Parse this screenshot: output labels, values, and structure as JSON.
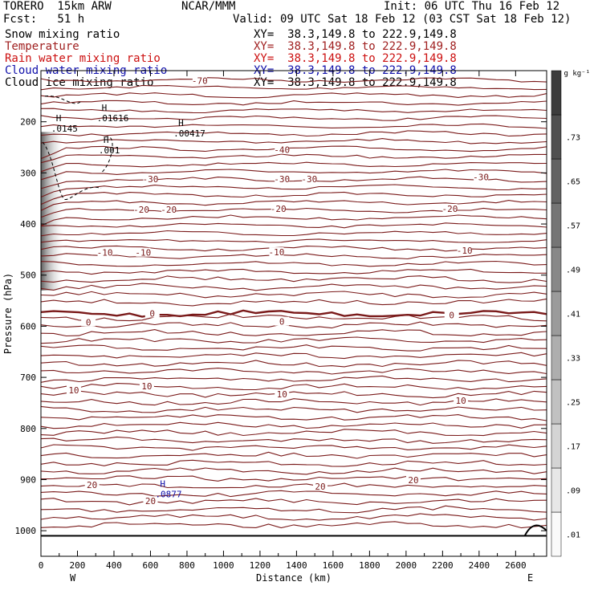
{
  "header": {
    "model": "TORERO  15km ARW",
    "center": "NCAR/MMM",
    "init": "Init: 06 UTC Thu 16 Feb 12",
    "fcst": "Fcst:   51 h",
    "valid": "Valid: 09 UTC Sat 18 Feb 12 (03 CST Sat 18 Feb 12)"
  },
  "fields": [
    {
      "label": "Snow mixing ratio",
      "color": "#000000",
      "xy": "XY=  38.3,149.8 to 222.9,149.8"
    },
    {
      "label": "Temperature",
      "color": "#a02020",
      "xy": "XY=  38.3,149.8 to 222.9,149.8"
    },
    {
      "label": "Rain water mixing ratio",
      "color": "#cc1010",
      "xy": "XY=  38.3,149.8 to 222.9,149.8"
    },
    {
      "label": "Cloud water mixing ratio",
      "color": "#1010aa",
      "xy": "XY=  38.3,149.8 to 222.9,149.8"
    },
    {
      "label": "Cloud ice mixing ratio",
      "color": "#000000",
      "xy": "XY=  38.3,149.8 to 222.9,149.8"
    }
  ],
  "chart_data": {
    "type": "cross-section contour",
    "xlabel": "Distance (km)",
    "ylabel": "Pressure (hPa)",
    "xlim": [
      0,
      2770
    ],
    "ylim": [
      1050,
      100
    ],
    "x_ticks": [
      0,
      200,
      400,
      600,
      800,
      1000,
      1200,
      1400,
      1600,
      1800,
      2000,
      2200,
      2400,
      2600
    ],
    "y_ticks": [
      200,
      300,
      400,
      500,
      600,
      700,
      800,
      900,
      1000
    ],
    "west_label": "W",
    "east_label": "E",
    "colorbar": {
      "unit": "g kg⁻¹",
      "labels": [
        ".01",
        ".09",
        ".17",
        ".25",
        ".33",
        ".41",
        ".49",
        ".57",
        ".65",
        ".73"
      ]
    },
    "temperature_contours": [
      {
        "value": -70,
        "p": 125
      },
      {
        "value": -40,
        "p": 260
      },
      {
        "value": -30,
        "p": 310
      },
      {
        "value": -20,
        "p": 370
      },
      {
        "value": -10,
        "p": 455
      },
      {
        "value": 0,
        "p": 575
      },
      {
        "value": 10,
        "p": 720
      },
      {
        "value": 20,
        "p": 905
      }
    ],
    "temperature_labels": [
      {
        "text": "-70",
        "x": 870,
        "p": 120
      },
      {
        "text": "-40",
        "x": 1320,
        "p": 255
      },
      {
        "text": "-30",
        "x": 600,
        "p": 312
      },
      {
        "text": "-30",
        "x": 1320,
        "p": 312
      },
      {
        "text": "-30",
        "x": 1470,
        "p": 312
      },
      {
        "text": "-30",
        "x": 2410,
        "p": 308
      },
      {
        "text": "-20",
        "x": 550,
        "p": 372
      },
      {
        "text": "-20",
        "x": 700,
        "p": 372
      },
      {
        "text": "-20",
        "x": 1300,
        "p": 370
      },
      {
        "text": "-20",
        "x": 2240,
        "p": 370
      },
      {
        "text": "-10",
        "x": 350,
        "p": 456
      },
      {
        "text": "-10",
        "x": 560,
        "p": 456
      },
      {
        "text": "-10",
        "x": 1290,
        "p": 455
      },
      {
        "text": "-10",
        "x": 2320,
        "p": 452
      },
      {
        "text": "0",
        "x": 260,
        "p": 592
      },
      {
        "text": "0",
        "x": 610,
        "p": 575
      },
      {
        "text": "0",
        "x": 1320,
        "p": 591
      },
      {
        "text": "0",
        "x": 2250,
        "p": 578
      },
      {
        "text": "10",
        "x": 180,
        "p": 725
      },
      {
        "text": "10",
        "x": 580,
        "p": 717
      },
      {
        "text": "10",
        "x": 1320,
        "p": 733
      },
      {
        "text": "10",
        "x": 2300,
        "p": 745
      },
      {
        "text": "20",
        "x": 280,
        "p": 910
      },
      {
        "text": "20",
        "x": 600,
        "p": 942
      },
      {
        "text": "20",
        "x": 1530,
        "p": 913
      },
      {
        "text": "20",
        "x": 2040,
        "p": 901
      }
    ],
    "maxima": [
      {
        "text": ".01616",
        "x": 350,
        "p": 194,
        "color": "#000000"
      },
      {
        "text": ".0145",
        "x": 100,
        "p": 215,
        "color": "#000000"
      },
      {
        "text": ".00417",
        "x": 770,
        "p": 224,
        "color": "#000000"
      },
      {
        "text": ".001",
        "x": 360,
        "p": 257,
        "color": "#000000"
      },
      {
        "text": ".0877",
        "x": 670,
        "p": 930,
        "color": "#1010aa"
      }
    ],
    "snow_shading": {
      "x_range": [
        0,
        120
      ],
      "p_range": [
        220,
        530
      ],
      "max": 0.69
    }
  }
}
